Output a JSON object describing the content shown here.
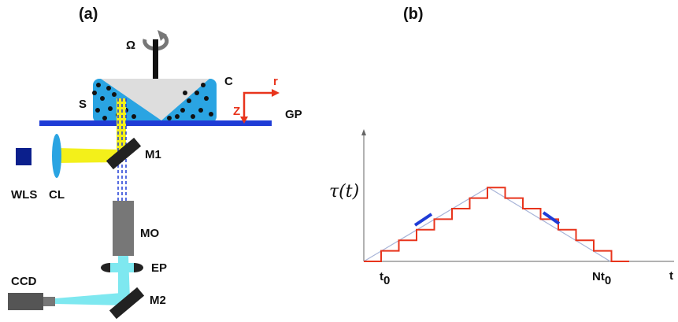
{
  "panel_a": {
    "label": "(a)",
    "labels": {
      "omega": "Ω",
      "cone": "C",
      "sample": "S",
      "r_axis": "r",
      "z_axis": "Z",
      "glass_plate": "GP",
      "mirror1": "M1",
      "light_source": "WLS",
      "lens": "CL",
      "objective": "MO",
      "eyepiece": "EP",
      "camera": "CCD",
      "mirror2": "M2"
    }
  },
  "panel_b": {
    "label": "(b)",
    "y_axis_label": "τ(t)",
    "x_axis_label": "t",
    "start_label": {
      "base": "t",
      "sub": "0"
    },
    "end_label": {
      "base": "Nt",
      "sub": "0"
    }
  }
}
